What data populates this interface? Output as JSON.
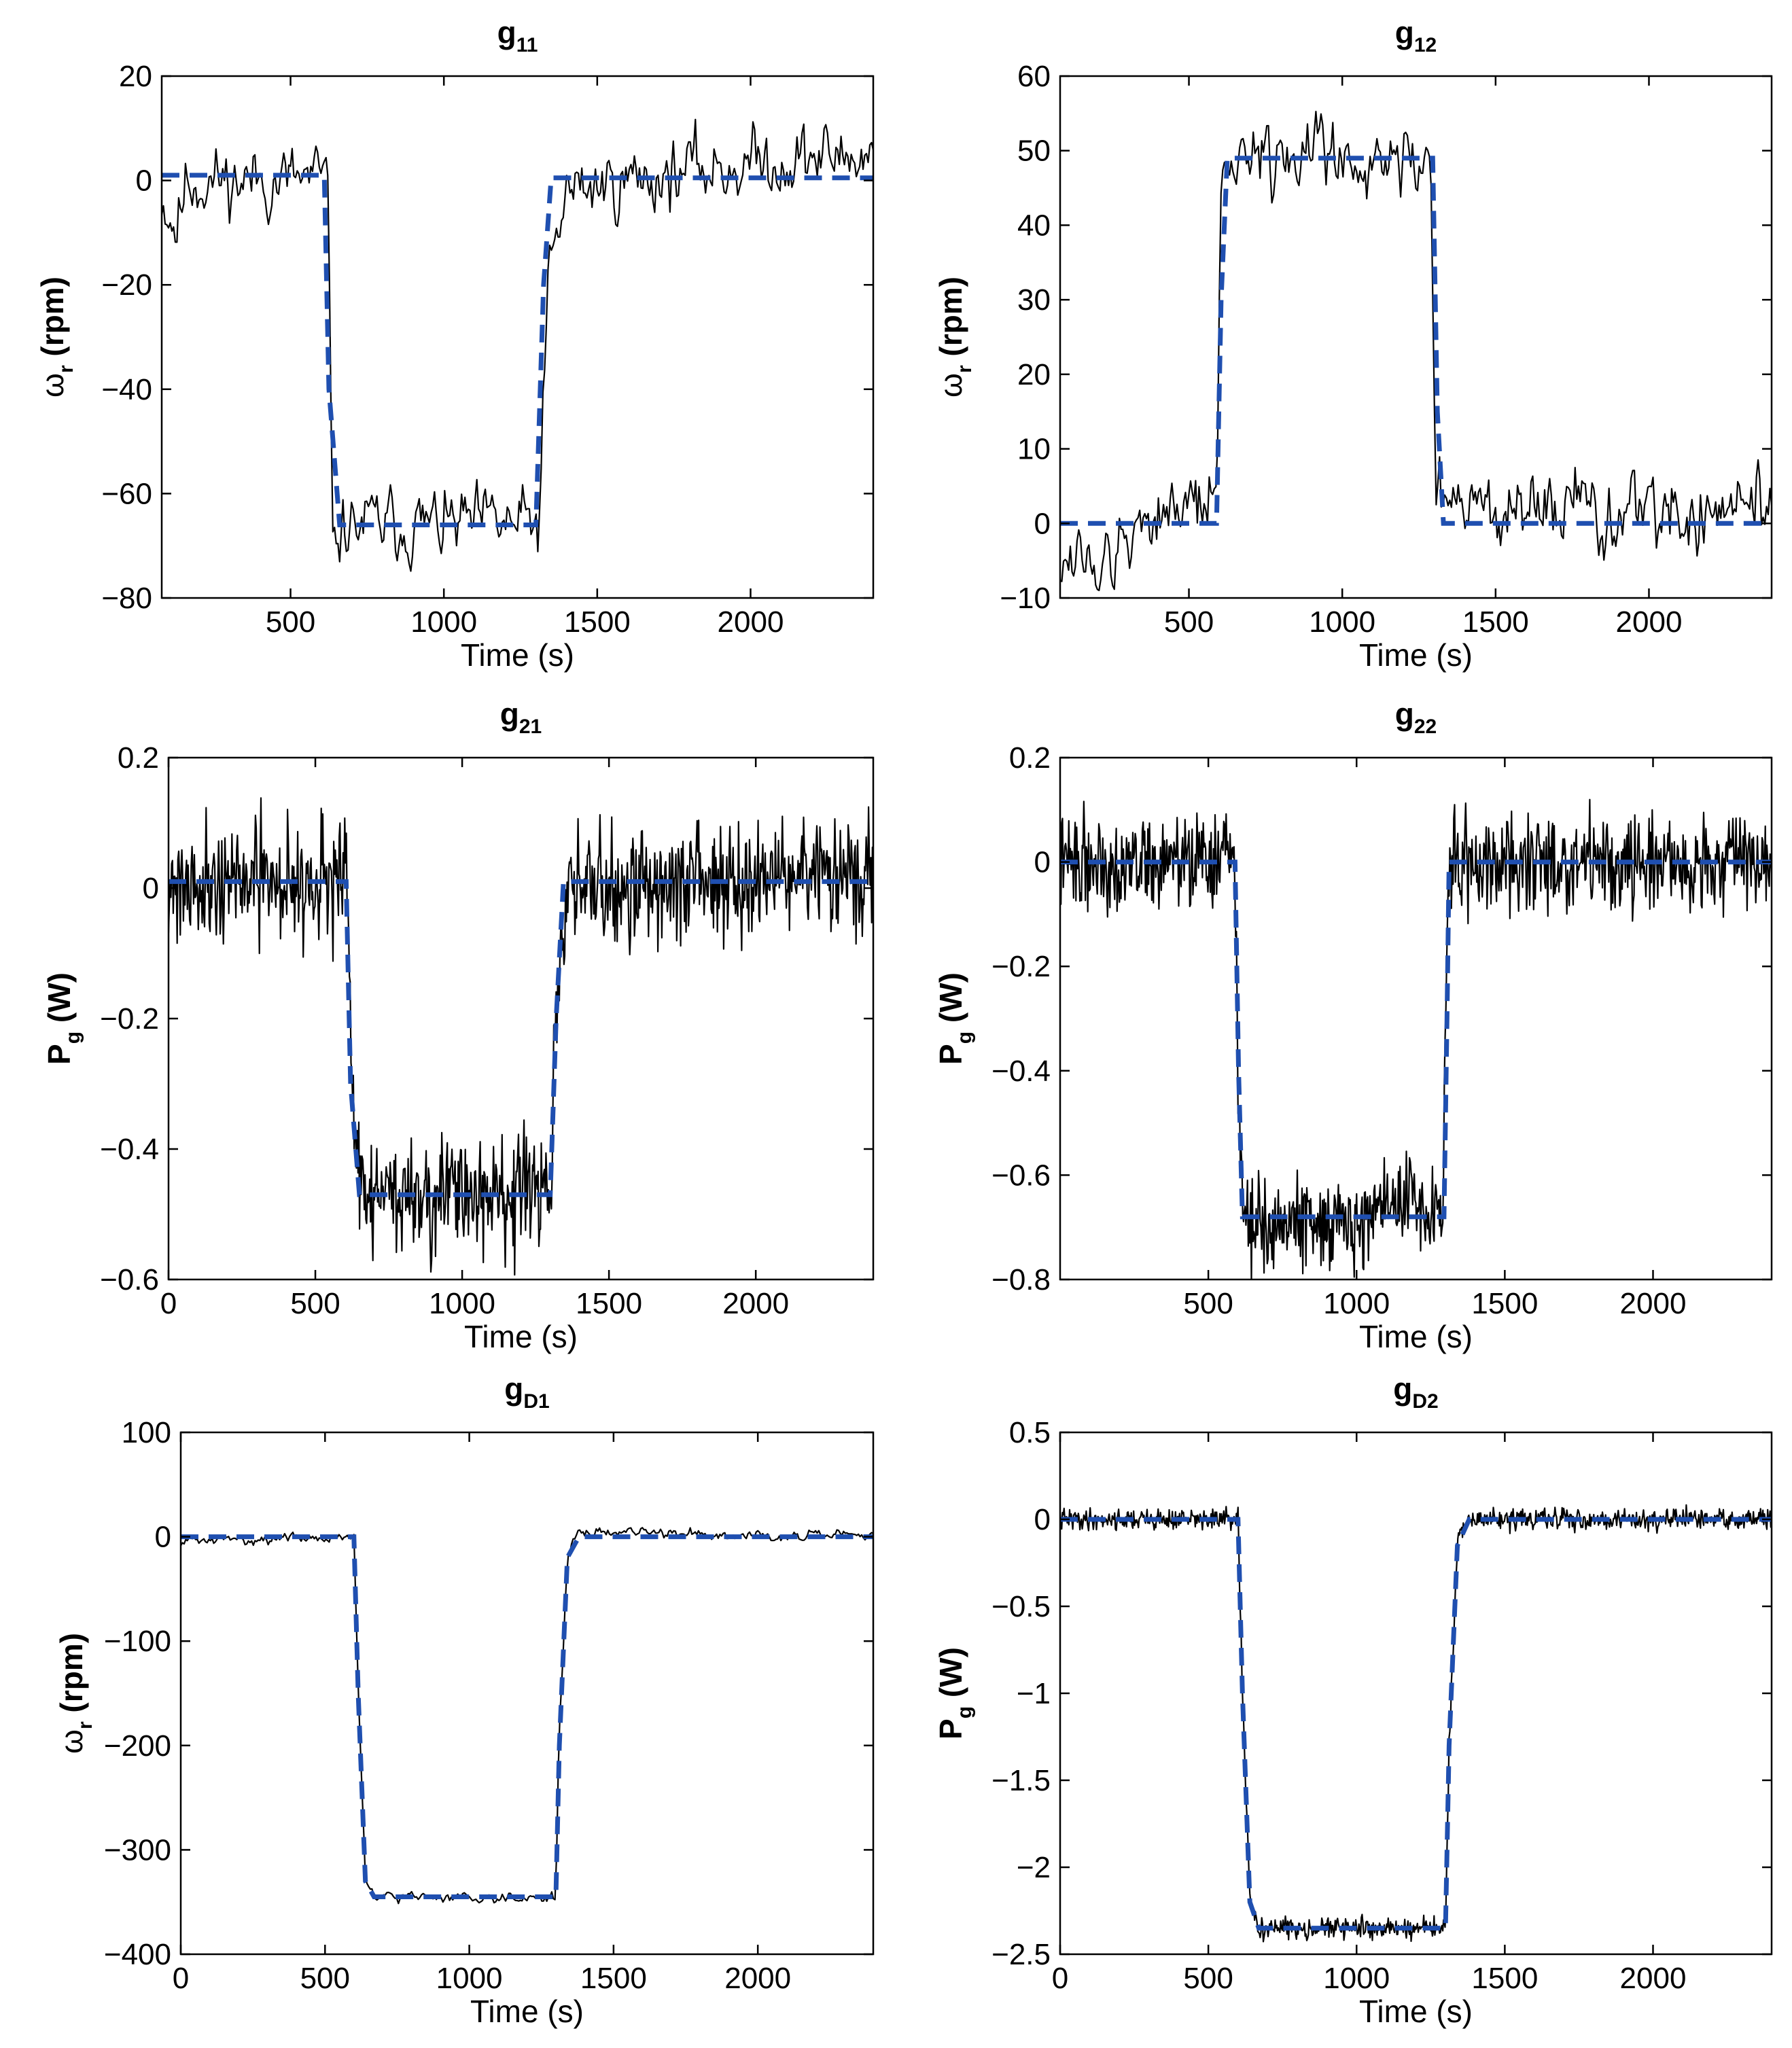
{
  "colors": {
    "measured": "#000000",
    "model": "#1f4fb0",
    "background": "#ffffff"
  },
  "chart_data": [
    {
      "type": "line",
      "title_main": "g",
      "title_sub": "11",
      "xlabel": "Time (s)",
      "ylabel_main": "ω",
      "ylabel_sub": "r",
      "ylabel_unit": "(rpm)",
      "xlim": [
        80,
        2400
      ],
      "ylim": [
        -80,
        20
      ],
      "xticks": [
        500,
        1000,
        1500,
        2000
      ],
      "yticks": [
        20,
        0,
        -20,
        -40,
        -60,
        -80
      ],
      "xtick_labels": [
        "500",
        "1000",
        "1500",
        "2000"
      ],
      "ytick_labels": [
        "20",
        "0",
        "−20",
        "−40",
        "−60",
        "−80"
      ],
      "grid": false,
      "series": [
        {
          "style": "noisy",
          "noise": 3.5,
          "seed": 11,
          "x": [
            80,
            130,
            160,
            620,
            640,
            665,
            1310,
            1340,
            1400,
            1800,
            2100,
            2400
          ],
          "y": [
            -3,
            -9,
            0,
            0,
            -72,
            -66,
            -66,
            -20,
            -2,
            2,
            4,
            5
          ]
        },
        {
          "style": "dashed",
          "x": [
            80,
            610,
            625,
            660,
            1300,
            1325,
            1350,
            2400
          ],
          "y": [
            1,
            1,
            -40,
            -66,
            -66,
            -20,
            0.5,
            0.5
          ]
        }
      ]
    },
    {
      "type": "line",
      "title_main": "g",
      "title_sub": "12",
      "xlabel": "Time (s)",
      "ylabel_main": "ω",
      "ylabel_sub": "r",
      "ylabel_unit": "(rpm)",
      "xlim": [
        80,
        2400
      ],
      "ylim": [
        -10,
        60
      ],
      "xticks": [
        500,
        1000,
        1500,
        2000
      ],
      "yticks": [
        60,
        50,
        40,
        30,
        20,
        10,
        0,
        -10
      ],
      "xtick_labels": [
        "500",
        "1000",
        "1500",
        "2000"
      ],
      "ytick_labels": [
        "60",
        "50",
        "40",
        "30",
        "20",
        "10",
        "0",
        "−10"
      ],
      "grid": false,
      "series": [
        {
          "style": "noisy",
          "noise": 2.6,
          "seed": 12,
          "x": [
            80,
            250,
            400,
            590,
            605,
            640,
            1290,
            1305,
            1340,
            1700,
            2400
          ],
          "y": [
            -4,
            -6,
            3,
            2,
            45,
            50,
            49,
            5,
            2,
            1,
            2
          ]
        },
        {
          "style": "dashed",
          "x": [
            80,
            590,
            605,
            625,
            1295,
            1310,
            1330,
            2400
          ],
          "y": [
            0,
            0,
            30,
            49,
            49,
            15,
            0,
            0
          ]
        }
      ]
    },
    {
      "type": "line",
      "title_main": "g",
      "title_sub": "21",
      "xlabel": "Time (s)",
      "ylabel_main": "P",
      "ylabel_sub": "g",
      "ylabel_unit": "(W)",
      "xlim": [
        0,
        2400
      ],
      "ylim": [
        -0.6,
        0.2
      ],
      "xticks": [
        0,
        500,
        1000,
        1500,
        2000
      ],
      "yticks": [
        0.2,
        0,
        -0.2,
        -0.4,
        -0.6
      ],
      "xtick_labels": [
        "0",
        "500",
        "1000",
        "1500",
        "2000"
      ],
      "ytick_labels": [
        "0.2",
        "0",
        "−0.2",
        "−0.4",
        "−0.6"
      ],
      "grid": false,
      "series": [
        {
          "style": "noisy",
          "noise": 0.045,
          "seed": 21,
          "dense": true,
          "x": [
            0,
            610,
            625,
            650,
            1300,
            1320,
            1360,
            2400
          ],
          "y": [
            0.01,
            0.01,
            -0.3,
            -0.47,
            -0.47,
            -0.2,
            0.0,
            0.02
          ]
        },
        {
          "style": "dashed",
          "x": [
            0,
            605,
            620,
            650,
            1300,
            1320,
            1345,
            2400
          ],
          "y": [
            0.01,
            0.01,
            -0.3,
            -0.47,
            -0.47,
            -0.2,
            0.01,
            0.01
          ]
        }
      ]
    },
    {
      "type": "line",
      "title_main": "g",
      "title_sub": "22",
      "xlabel": "Time (s)",
      "ylabel_main": "P",
      "ylabel_sub": "g",
      "ylabel_unit": "(W)",
      "xlim": [
        0,
        2400
      ],
      "ylim": [
        -0.8,
        0.2
      ],
      "xticks": [
        500,
        1000,
        1500,
        2000
      ],
      "yticks": [
        0.2,
        0,
        -0.2,
        -0.4,
        -0.6,
        -0.8
      ],
      "xtick_labels": [
        "500",
        "1000",
        "1500",
        "2000"
      ],
      "ytick_labels": [
        "0.2",
        "0",
        "−0.2",
        "−0.4",
        "−0.6",
        "−0.8"
      ],
      "grid": false,
      "series": [
        {
          "style": "noisy",
          "noise": 0.045,
          "seed": 22,
          "dense": true,
          "x": [
            0,
            590,
            600,
            620,
            1030,
            1080,
            1290,
            1300,
            1310,
            2400
          ],
          "y": [
            0,
            0,
            -0.4,
            -0.69,
            -0.69,
            -0.64,
            -0.68,
            -0.3,
            0,
            0
          ]
        },
        {
          "style": "dashed",
          "x": [
            0,
            590,
            602,
            615,
            1295,
            1305,
            1312,
            2400
          ],
          "y": [
            0,
            0,
            -0.4,
            -0.68,
            -0.68,
            -0.3,
            0,
            0
          ]
        }
      ]
    },
    {
      "type": "line",
      "title_main": "g",
      "title_sub": "D1",
      "xlabel": "Time (s)",
      "ylabel_main": "ω",
      "ylabel_sub": "r",
      "ylabel_unit": "(rpm)",
      "xlim": [
        0,
        2400
      ],
      "ylim": [
        -400,
        100
      ],
      "xticks": [
        0,
        500,
        1000,
        1500,
        2000
      ],
      "yticks": [
        100,
        0,
        -100,
        -200,
        -300,
        -400
      ],
      "xtick_labels": [
        "0",
        "500",
        "1000",
        "1500",
        "2000"
      ],
      "ytick_labels": [
        "100",
        "0",
        "−100",
        "−200",
        "−300",
        "−400"
      ],
      "grid": false,
      "series": [
        {
          "style": "noisy",
          "noise": 2.5,
          "seed": 31,
          "x": [
            0,
            600,
            615,
            640,
            670,
            1300,
            1310,
            1340,
            1380,
            2400
          ],
          "y": [
            -4,
            0,
            -150,
            -330,
            -345,
            -345,
            -200,
            -20,
            5,
            0
          ]
        },
        {
          "style": "dashed",
          "x": [
            0,
            600,
            615,
            640,
            670,
            1300,
            1312,
            1340,
            1380,
            2400
          ],
          "y": [
            0,
            0,
            -150,
            -330,
            -345,
            -345,
            -200,
            -20,
            0,
            0
          ]
        }
      ]
    },
    {
      "type": "line",
      "title_main": "g",
      "title_sub": "D2",
      "xlabel": "Time (s)",
      "ylabel_main": "P",
      "ylabel_sub": "g",
      "ylabel_unit": "(W)",
      "xlim": [
        0,
        2400
      ],
      "ylim": [
        -2.5,
        0.5
      ],
      "xticks": [
        0,
        500,
        1000,
        1500,
        2000
      ],
      "yticks": [
        0.5,
        0,
        -0.5,
        -1,
        -1.5,
        -2,
        -2.5
      ],
      "xtick_labels": [
        "0",
        "500",
        "1000",
        "1500",
        "2000"
      ],
      "ytick_labels": [
        "0.5",
        "0",
        "−0.5",
        "−1",
        "−1.5",
        "−2",
        "−2.5"
      ],
      "grid": false,
      "series": [
        {
          "style": "noisy",
          "noise": 0.03,
          "seed": 41,
          "dense": true,
          "x": [
            0,
            600,
            615,
            640,
            670,
            1300,
            1312,
            1340,
            1380,
            2400
          ],
          "y": [
            0,
            0,
            -1,
            -2.2,
            -2.35,
            -2.35,
            -1.3,
            -0.15,
            0,
            0
          ]
        },
        {
          "style": "dashed",
          "x": [
            0,
            600,
            615,
            640,
            670,
            1300,
            1312,
            1340,
            1380,
            2400
          ],
          "y": [
            0,
            0,
            -1,
            -2.2,
            -2.35,
            -2.35,
            -1.3,
            -0.15,
            0,
            0
          ]
        }
      ]
    }
  ]
}
